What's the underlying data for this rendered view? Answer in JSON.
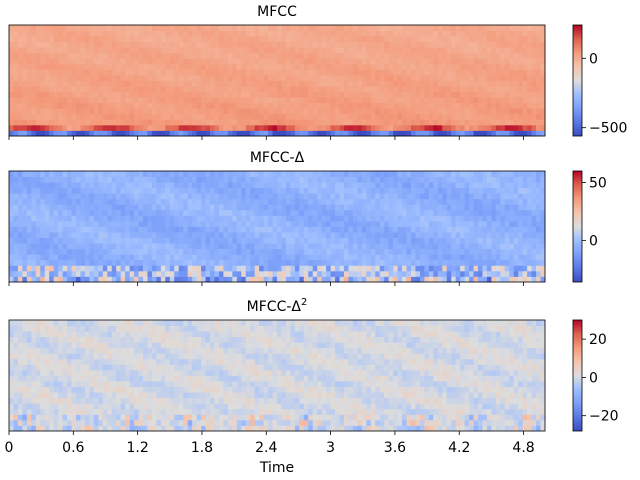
{
  "chart_data": [
    {
      "type": "heatmap",
      "title": "MFCC",
      "colormap": "coolwarm",
      "colorbar": {
        "ticks": [
          0,
          -500
        ],
        "tick_labels": [
          "0",
          "−500"
        ],
        "range": [
          -560,
          240
        ]
      },
      "rows": 20,
      "cols": 120,
      "feature": "mfcc"
    },
    {
      "type": "heatmap",
      "title_base": "MFCC-Δ",
      "title_sup": "",
      "colormap": "coolwarm",
      "colorbar": {
        "ticks": [
          50,
          0
        ],
        "tick_labels": [
          "50",
          "0"
        ],
        "range": [
          -36,
          60
        ]
      },
      "rows": 20,
      "cols": 120,
      "feature": "delta"
    },
    {
      "type": "heatmap",
      "title_base": "MFCC-Δ",
      "title_sup": "2",
      "colormap": "coolwarm",
      "colorbar": {
        "ticks": [
          20,
          0,
          -20
        ],
        "tick_labels": [
          "20",
          "0",
          "−20"
        ],
        "range": [
          -28,
          30
        ]
      },
      "rows": 20,
      "cols": 120,
      "feature": "delta2"
    }
  ],
  "x_axis": {
    "label": "Time",
    "range": [
      0,
      5.0
    ],
    "ticks": [
      0,
      0.6,
      1.2,
      1.8,
      2.4,
      3,
      3.6,
      4.2,
      4.8
    ],
    "tick_labels": [
      "0",
      "0.6",
      "1.2",
      "1.8",
      "2.4",
      "3",
      "3.6",
      "4.2",
      "4.8"
    ]
  }
}
